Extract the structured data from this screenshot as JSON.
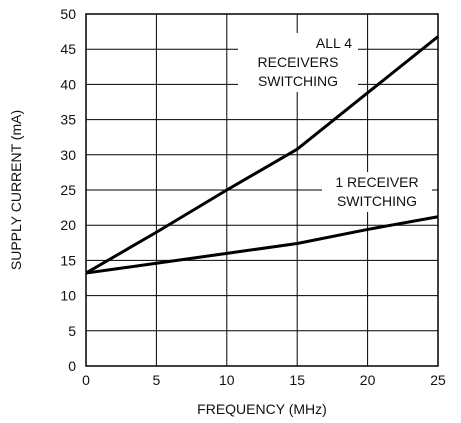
{
  "chart_data": {
    "type": "line",
    "title": "",
    "xlabel": "FREQUENCY (MHz)",
    "ylabel": "SUPPLY CURRENT (mA)",
    "xlim": [
      0,
      25
    ],
    "ylim": [
      0,
      50
    ],
    "xticks": [
      0,
      5,
      10,
      15,
      20,
      25
    ],
    "yticks": [
      0,
      5,
      10,
      15,
      20,
      25,
      30,
      35,
      40,
      45,
      50
    ],
    "grid": true,
    "series": [
      {
        "name": "ALL 4 RECEIVERS SWITCHING",
        "x": [
          0,
          5,
          10,
          15,
          20,
          25
        ],
        "y": [
          13.2,
          19,
          25,
          30.8,
          38.8,
          46.8
        ]
      },
      {
        "name": "1 RECEIVER SWITCHING",
        "x": [
          0,
          5,
          10,
          15,
          20,
          25
        ],
        "y": [
          13.2,
          14.6,
          16,
          17.4,
          19.4,
          21.2
        ]
      }
    ],
    "annotations": [
      {
        "series": 0,
        "lines": [
          "ALL 4",
          "RECEIVERS",
          "SWITCHING"
        ]
      },
      {
        "series": 1,
        "lines": [
          "1 RECEIVER",
          "SWITCHING"
        ]
      }
    ]
  }
}
